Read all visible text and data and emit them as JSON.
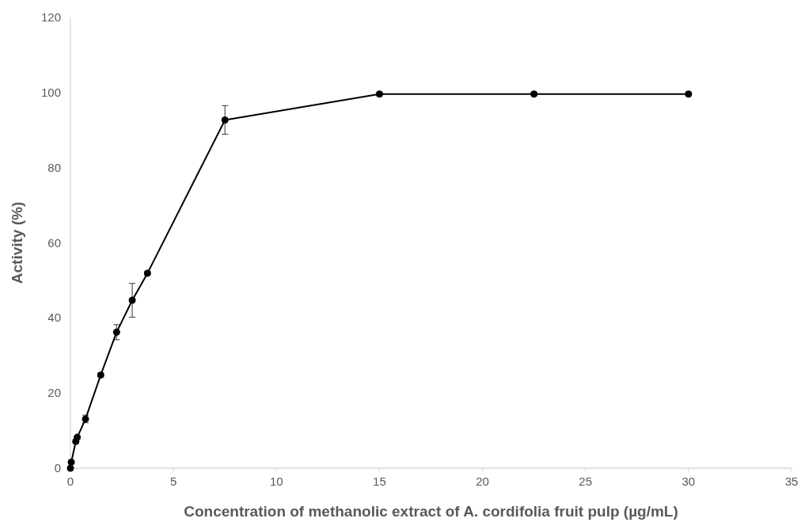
{
  "chart_data": {
    "type": "line",
    "xlabel": "Concentration of methanolic extract of A. cordifolia fruit pulp (µg/mL)",
    "ylabel": "Activity (%)",
    "x": [
      0,
      0.04,
      0.26,
      0.33,
      0.73,
      1.47,
      2.24,
      3,
      3.74,
      7.5,
      15,
      22.5,
      30
    ],
    "series": [
      {
        "color": "#000000",
        "values": [
          0,
          1.6,
          7.1,
          8.2,
          13.1,
          24.8,
          36.2,
          44.7,
          51.9,
          92.7,
          99.6,
          99.6,
          99.6
        ],
        "errors": [
          null,
          null,
          0.5,
          0.5,
          1,
          0.5,
          2,
          4.5,
          0.5,
          3.8,
          0.5,
          0.5,
          0.5
        ]
      }
    ],
    "xlim": [
      0,
      35
    ],
    "xticks": [
      0,
      5,
      10,
      15,
      20,
      25,
      30,
      35
    ],
    "ylim": [
      0,
      120
    ],
    "yticks": [
      0,
      20,
      40,
      60,
      80,
      100,
      120
    ],
    "marker": "circle",
    "line_style": "solid",
    "grid": false
  }
}
